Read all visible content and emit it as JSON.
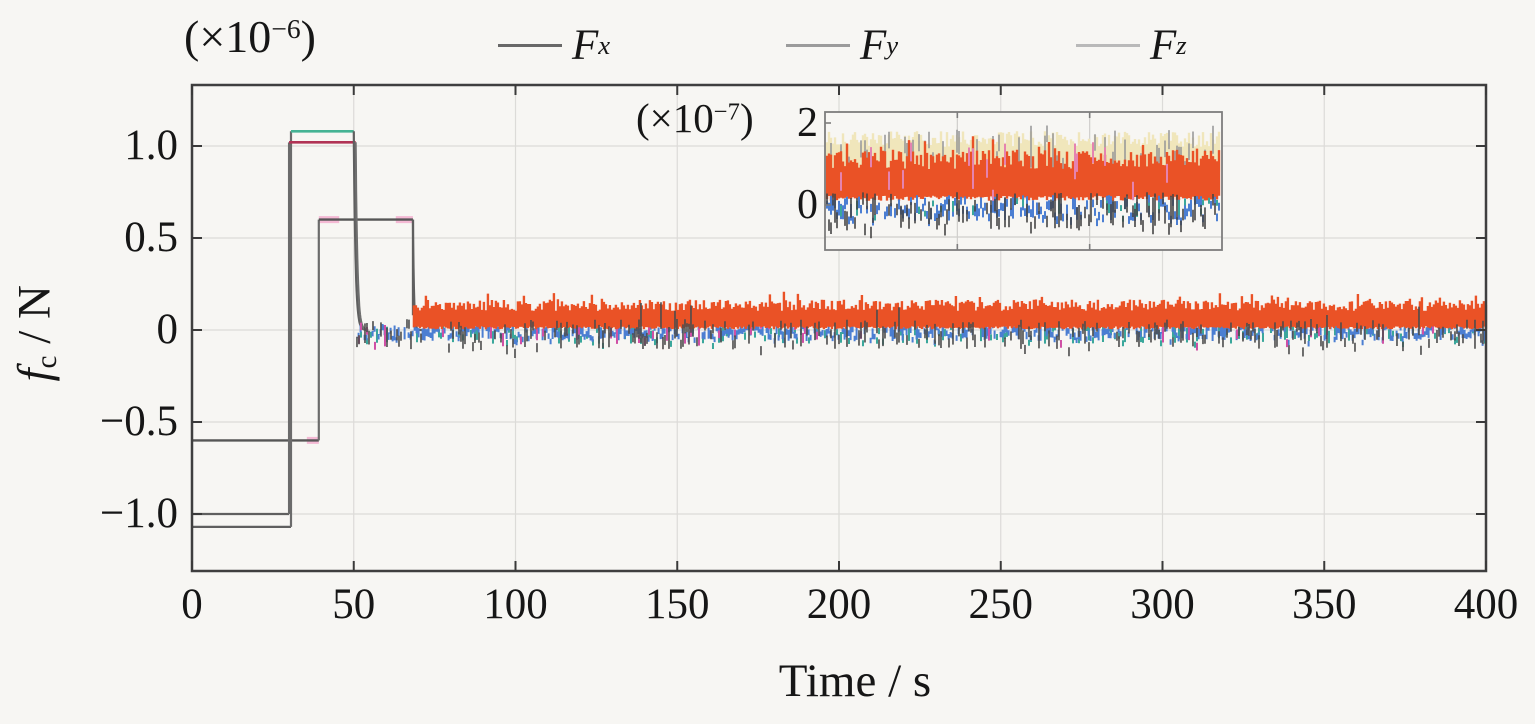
{
  "figure": {
    "type_note": "scientific line chart with inset zoom",
    "background": "#f7f6f3",
    "frame_color": "#3f3f3f",
    "grid_color": "#dcdbd8",
    "tick_color": "#3a3a3a",
    "text_color": "#161616"
  },
  "chart_data": {
    "type": "line",
    "title": "",
    "xlabel": "Time / s",
    "ylabel_main": "f",
    "ylabel_sub": "c",
    "ylabel_rest": " / N",
    "y_scale_prefix": "(×10",
    "y_scale_exp": "−6",
    "y_scale_suffix": ")",
    "xlim": [
      0,
      400
    ],
    "ylim": [
      -1.3,
      1.33
    ],
    "grid": true,
    "xticks": [
      {
        "t": 0,
        "label": "0"
      },
      {
        "t": 50,
        "label": "50"
      },
      {
        "t": 100,
        "label": "100"
      },
      {
        "t": 150,
        "label": "150"
      },
      {
        "t": 200,
        "label": "200"
      },
      {
        "t": 250,
        "label": "250"
      },
      {
        "t": 300,
        "label": "300"
      },
      {
        "t": 350,
        "label": "350"
      },
      {
        "t": 400,
        "label": "400"
      }
    ],
    "yticks": [
      {
        "v": 1.0,
        "label": "1.0"
      },
      {
        "v": 0.5,
        "label": "0.5"
      },
      {
        "v": 0.0,
        "label": "0"
      },
      {
        "v": -0.5,
        "label": "−0.5"
      },
      {
        "v": -1.0,
        "label": "−1.0"
      }
    ],
    "legend": [
      {
        "label": "F",
        "sub": "x",
        "swatch": "#686868"
      },
      {
        "label": "F",
        "sub": "y",
        "swatch": "#9b9b9b"
      },
      {
        "label": "F",
        "sub": "z",
        "swatch": "#b9b9b9"
      }
    ],
    "series": [
      {
        "name": "Fx",
        "unit": "×10⁻⁶ N",
        "values": [
          {
            "t": [
              0,
              30
            ],
            "f": -1.0
          },
          {
            "t": [
              30,
              50
            ],
            "f": 1.02
          },
          {
            "t": [
              50,
              400
            ],
            "f": 0.0
          }
        ]
      },
      {
        "name": "Fy",
        "unit": "×10⁻⁶ N",
        "values": [
          {
            "t": [
              0,
              39
            ],
            "f": -0.6
          },
          {
            "t": [
              39,
              68
            ],
            "f": 0.6
          },
          {
            "t": [
              68,
              400
            ],
            "f": 0.07
          }
        ]
      },
      {
        "name": "Fz",
        "unit": "×10⁻⁶ N",
        "values": [
          {
            "t": [
              0,
              30
            ],
            "f": -1.07
          },
          {
            "t": [
              30,
              50
            ],
            "f": 1.08
          },
          {
            "t": [
              50,
              400
            ],
            "f": 0.0
          }
        ]
      }
    ],
    "step_lines": [
      {
        "pts": [
          [
            0,
            -1.0
          ],
          [
            30,
            -1.0
          ]
        ],
        "color": "#5f5f5f",
        "w": 2.2
      },
      {
        "pts": [
          [
            0,
            -1.07
          ],
          [
            30.6,
            -1.07
          ]
        ],
        "color": "#5f5f5f",
        "w": 2.2
      },
      {
        "pts": [
          [
            0,
            -0.6
          ],
          [
            39.2,
            -0.6
          ]
        ],
        "color": "#565656",
        "w": 2.4
      },
      {
        "pts": [
          [
            30,
            -1.0
          ],
          [
            30,
            1.02
          ]
        ],
        "color": "#6b6b6b",
        "w": 2.2
      },
      {
        "pts": [
          [
            30.6,
            -1.07
          ],
          [
            30.6,
            1.08
          ]
        ],
        "color": "#6b6b6b",
        "w": 2.2
      },
      {
        "pts": [
          [
            30,
            1.02
          ],
          [
            50.6,
            1.02
          ]
        ],
        "color": "#b13355",
        "w": 2.6
      },
      {
        "pts": [
          [
            30.6,
            1.08
          ],
          [
            50,
            1.08
          ]
        ],
        "color": "#45b394",
        "w": 2.6
      },
      {
        "pts": [
          [
            39.2,
            -0.6
          ],
          [
            39.2,
            0.6
          ]
        ],
        "color": "#6b6b6b",
        "w": 2.2
      },
      {
        "pts": [
          [
            39.2,
            0.6
          ],
          [
            68.3,
            0.6
          ]
        ],
        "color": "#565656",
        "w": 2.4
      },
      {
        "pts": [
          [
            68.3,
            0.6
          ],
          [
            68.3,
            0.08
          ]
        ],
        "color": "#5f5f5f",
        "w": 2.2
      }
    ],
    "pink_marks": {
      "color": "#f4b9d4",
      "w": 7,
      "marks": [
        {
          "t0": 35.5,
          "t1": 39.2,
          "v": -0.6
        },
        {
          "t0": 39.2,
          "t1": 45.5,
          "v": 0.6
        },
        {
          "t0": 63.0,
          "t1": 68.3,
          "v": 0.6
        }
      ]
    },
    "decays": [
      {
        "t0": 50.0,
        "v0": 1.08,
        "tau": 0.55,
        "color": "#5f5f5f",
        "w": 2.2
      },
      {
        "t0": 50.6,
        "v0": 1.02,
        "tau": 0.55,
        "color": "#6e6e6e",
        "w": 2.0
      },
      {
        "t0": 68.3,
        "v0": 0.6,
        "tau": 0.3,
        "color": "#5f5f5f",
        "w": 2.2
      }
    ],
    "noise_layers": [
      {
        "color": "#3aa79b",
        "t0": 51.0,
        "t1": 400,
        "top": 0.035,
        "bot": -0.075,
        "band": false,
        "density": 0.3,
        "w": 2.0,
        "seed": 11
      },
      {
        "color": "#4b7ed2",
        "t0": 51.5,
        "t1": 400,
        "top": 0.04,
        "bot": -0.06,
        "band": false,
        "density": 0.8,
        "w": 2.0,
        "seed": 21
      },
      {
        "color": "#cf4fa5",
        "t0": 51.0,
        "t1": 400,
        "top": 0.05,
        "bot": -0.09,
        "band": false,
        "density": 0.09,
        "w": 2.0,
        "seed": 31
      },
      {
        "color": "#ea5226",
        "t0": 68.6,
        "t1": 400,
        "top": 0.165,
        "bot": 0.004,
        "band": true,
        "density": 1.0,
        "w": 2.4,
        "seed": 41,
        "spikeP": 0.1,
        "spikeAmp": 0.055
      },
      {
        "color": "#4c4c4c",
        "t0": 51.0,
        "t1": 400,
        "top": 0.06,
        "bot": -0.105,
        "band": false,
        "density": 0.42,
        "w": 1.6,
        "seed": 51,
        "spikeP": 0.05,
        "spikeAmp": 0.12
      }
    ],
    "inset": {
      "scale_prefix": "(×10",
      "scale_exp": "−7",
      "scale_suffix": ")",
      "yticks": [
        {
          "v": 2,
          "label": "2"
        },
        {
          "v": 0,
          "label": "0"
        }
      ],
      "border_color": "#7d7d7d",
      "grid_color": "#cfcecb",
      "noise_layers": [
        {
          "color": "#f0e6bb",
          "f0": 0.0,
          "f1": 1.0,
          "top": 1.8,
          "bot": 0.8,
          "band": true,
          "density": 1.0,
          "w": 2.4,
          "seed": 61
        },
        {
          "color": "#9a9a9a",
          "f0": 0.0,
          "f1": 1.0,
          "top": 1.95,
          "bot": 0.6,
          "band": false,
          "density": 0.3,
          "w": 1.6,
          "seed": 71
        },
        {
          "color": "#ea5226",
          "f0": 0.0,
          "f1": 1.0,
          "top": 1.35,
          "bot": 0.1,
          "band": true,
          "density": 1.0,
          "w": 2.4,
          "seed": 81,
          "spikeP": 0.12,
          "spikeAmp": 0.45
        },
        {
          "color": "#e583b0",
          "f0": 0.0,
          "f1": 1.0,
          "top": 1.55,
          "bot": 0.05,
          "band": false,
          "density": 0.1,
          "w": 2.0,
          "seed": 91
        },
        {
          "color": "#4b7ed2",
          "f0": 0.0,
          "f1": 1.0,
          "top": 0.25,
          "bot": -0.38,
          "band": false,
          "density": 0.75,
          "w": 2.0,
          "seed": 101
        },
        {
          "color": "#3aa79b",
          "f0": 0.0,
          "f1": 1.0,
          "top": 0.18,
          "bot": -0.3,
          "band": false,
          "density": 0.12,
          "w": 2.0,
          "seed": 111
        },
        {
          "color": "#454545",
          "f0": 0.0,
          "f1": 1.0,
          "top": 0.32,
          "bot": -0.62,
          "band": false,
          "density": 0.55,
          "w": 1.6,
          "seed": 121,
          "spikeP": 0.06,
          "spikeAmp": -0.38
        }
      ]
    }
  }
}
